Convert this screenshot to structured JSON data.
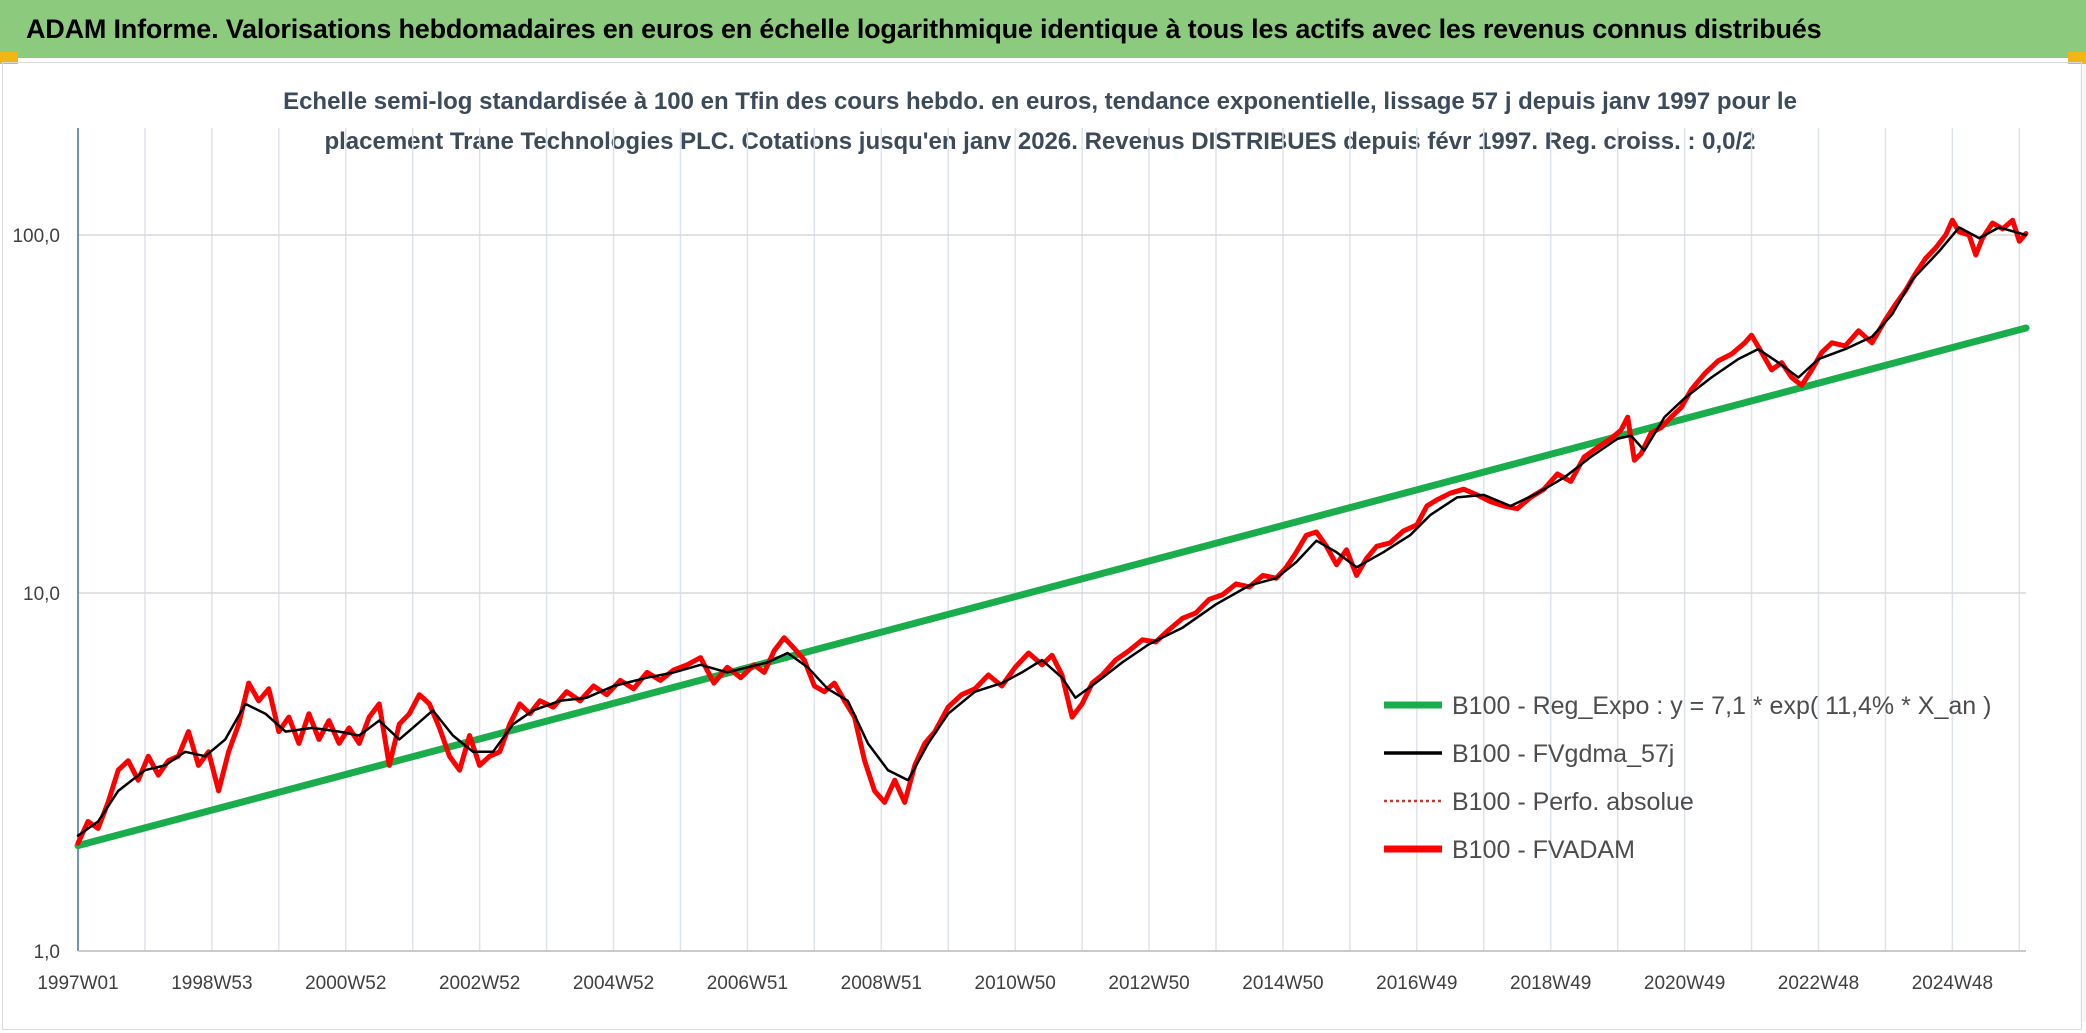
{
  "banner": {
    "title": "ADAM Informe. Valorisations hebdomadaires en euros en échelle logarithmique identique à tous les actifs avec les revenus connus distribués"
  },
  "chart_data": {
    "type": "line",
    "title_line1": "Echelle semi-log standardisée à 100 en Tfin des cours hebdo. en euros, tendance exponentielle, lissage 57 j depuis janv 1997 pour le",
    "title_line2": "placement Trane Technologies PLC. Cotations jusqu'en janv 2026. Revenus DISTRIBUES depuis févr 1997. Reg. croiss. : 0,0/2",
    "y_scale": "log",
    "ylim": [
      1,
      200
    ],
    "xlim": [
      1997.0,
      2026.1
    ],
    "y_ticks": [
      {
        "value": 1,
        "label": "1,0"
      },
      {
        "value": 10,
        "label": "10,0"
      },
      {
        "value": 100,
        "label": "100,0"
      }
    ],
    "x_ticks": [
      {
        "value": 1997.0,
        "label": "1997W01"
      },
      {
        "value": 1999.0,
        "label": "1998W53"
      },
      {
        "value": 2001.0,
        "label": "2000W52"
      },
      {
        "value": 2003.0,
        "label": "2002W52"
      },
      {
        "value": 2005.0,
        "label": "2004W52"
      },
      {
        "value": 2007.0,
        "label": "2006W51"
      },
      {
        "value": 2009.0,
        "label": "2008W51"
      },
      {
        "value": 2011.0,
        "label": "2010W50"
      },
      {
        "value": 2013.0,
        "label": "2012W50"
      },
      {
        "value": 2015.0,
        "label": "2014W50"
      },
      {
        "value": 2017.0,
        "label": "2016W49"
      },
      {
        "value": 2019.0,
        "label": "2018W49"
      },
      {
        "value": 2021.0,
        "label": "2020W49"
      },
      {
        "value": 2023.0,
        "label": "2022W48"
      },
      {
        "value": 2025.0,
        "label": "2024W48"
      }
    ],
    "grid": true,
    "legend_position": "right-middle",
    "series": [
      {
        "name": "B100 - Reg_Expo : y = 7,1 * exp( 11,4% *  X_an )",
        "color": "#1aad4b",
        "style": "solid-thick",
        "points": [
          [
            1997.0,
            1.97
          ],
          [
            2026.1,
            55.0
          ]
        ]
      },
      {
        "name": "B100 - FVgdma_57j",
        "color": "#000000",
        "style": "solid",
        "points": [
          [
            1997.0,
            2.1
          ],
          [
            1997.3,
            2.3
          ],
          [
            1997.6,
            2.8
          ],
          [
            1998.0,
            3.2
          ],
          [
            1998.3,
            3.3
          ],
          [
            1998.6,
            3.6
          ],
          [
            1998.9,
            3.5
          ],
          [
            1999.2,
            3.9
          ],
          [
            1999.5,
            4.9
          ],
          [
            1999.8,
            4.6
          ],
          [
            2000.1,
            4.1
          ],
          [
            2000.5,
            4.2
          ],
          [
            2000.9,
            4.1
          ],
          [
            2001.2,
            4.0
          ],
          [
            2001.5,
            4.4
          ],
          [
            2001.8,
            3.9
          ],
          [
            2002.0,
            4.2
          ],
          [
            2002.3,
            4.7
          ],
          [
            2002.6,
            4.0
          ],
          [
            2002.9,
            3.6
          ],
          [
            2003.2,
            3.6
          ],
          [
            2003.5,
            4.3
          ],
          [
            2003.8,
            4.7
          ],
          [
            2004.2,
            5.0
          ],
          [
            2004.6,
            5.1
          ],
          [
            2005.0,
            5.5
          ],
          [
            2005.5,
            5.8
          ],
          [
            2005.9,
            6.0
          ],
          [
            2006.3,
            6.3
          ],
          [
            2006.7,
            6.0
          ],
          [
            2007.0,
            6.2
          ],
          [
            2007.3,
            6.4
          ],
          [
            2007.6,
            6.8
          ],
          [
            2007.9,
            6.2
          ],
          [
            2008.2,
            5.4
          ],
          [
            2008.5,
            5.0
          ],
          [
            2008.8,
            3.8
          ],
          [
            2009.1,
            3.2
          ],
          [
            2009.4,
            3.0
          ],
          [
            2009.7,
            3.8
          ],
          [
            2010.0,
            4.6
          ],
          [
            2010.4,
            5.3
          ],
          [
            2010.8,
            5.6
          ],
          [
            2011.1,
            6.0
          ],
          [
            2011.4,
            6.5
          ],
          [
            2011.7,
            5.8
          ],
          [
            2011.9,
            5.1
          ],
          [
            2012.2,
            5.6
          ],
          [
            2012.6,
            6.4
          ],
          [
            2013.0,
            7.2
          ],
          [
            2013.5,
            8.0
          ],
          [
            2014.0,
            9.3
          ],
          [
            2014.5,
            10.5
          ],
          [
            2014.9,
            11.0
          ],
          [
            2015.2,
            12.2
          ],
          [
            2015.5,
            14.0
          ],
          [
            2015.8,
            13.0
          ],
          [
            2016.1,
            11.8
          ],
          [
            2016.5,
            13.0
          ],
          [
            2016.9,
            14.5
          ],
          [
            2017.2,
            16.5
          ],
          [
            2017.6,
            18.5
          ],
          [
            2018.0,
            18.8
          ],
          [
            2018.4,
            17.5
          ],
          [
            2018.8,
            19.0
          ],
          [
            2019.2,
            21.0
          ],
          [
            2019.6,
            24.0
          ],
          [
            2020.0,
            27.0
          ],
          [
            2020.2,
            27.5
          ],
          [
            2020.4,
            25.0
          ],
          [
            2020.7,
            31.0
          ],
          [
            2021.0,
            35.0
          ],
          [
            2021.4,
            40.0
          ],
          [
            2021.8,
            45.0
          ],
          [
            2022.1,
            48.0
          ],
          [
            2022.4,
            44.0
          ],
          [
            2022.7,
            40.0
          ],
          [
            2023.0,
            45.0
          ],
          [
            2023.4,
            48.0
          ],
          [
            2023.8,
            52.0
          ],
          [
            2024.1,
            60.0
          ],
          [
            2024.4,
            75.0
          ],
          [
            2024.8,
            90.0
          ],
          [
            2025.1,
            105.0
          ],
          [
            2025.4,
            98.0
          ],
          [
            2025.7,
            105.0
          ],
          [
            2026.1,
            100.0
          ]
        ]
      },
      {
        "name": "B100 - Perfo. absolue",
        "color": "#c0392b",
        "style": "dotted",
        "points": []
      },
      {
        "name": "B100 - FVADAM",
        "color": "#ff0000",
        "style": "solid-thick",
        "points": [
          [
            1997.0,
            2.0
          ],
          [
            1997.15,
            2.3
          ],
          [
            1997.3,
            2.2
          ],
          [
            1997.45,
            2.6
          ],
          [
            1997.6,
            3.2
          ],
          [
            1997.75,
            3.4
          ],
          [
            1997.9,
            3.0
          ],
          [
            1998.05,
            3.5
          ],
          [
            1998.2,
            3.1
          ],
          [
            1998.35,
            3.4
          ],
          [
            1998.5,
            3.5
          ],
          [
            1998.65,
            4.1
          ],
          [
            1998.8,
            3.3
          ],
          [
            1998.95,
            3.6
          ],
          [
            1999.1,
            2.8
          ],
          [
            1999.25,
            3.6
          ],
          [
            1999.4,
            4.3
          ],
          [
            1999.55,
            5.6
          ],
          [
            1999.7,
            5.0
          ],
          [
            1999.85,
            5.4
          ],
          [
            2000.0,
            4.1
          ],
          [
            2000.15,
            4.5
          ],
          [
            2000.3,
            3.8
          ],
          [
            2000.45,
            4.6
          ],
          [
            2000.6,
            3.9
          ],
          [
            2000.75,
            4.4
          ],
          [
            2000.9,
            3.8
          ],
          [
            2001.05,
            4.2
          ],
          [
            2001.2,
            3.8
          ],
          [
            2001.35,
            4.5
          ],
          [
            2001.5,
            4.9
          ],
          [
            2001.65,
            3.3
          ],
          [
            2001.8,
            4.3
          ],
          [
            2001.95,
            4.6
          ],
          [
            2002.1,
            5.2
          ],
          [
            2002.25,
            4.9
          ],
          [
            2002.4,
            4.2
          ],
          [
            2002.55,
            3.5
          ],
          [
            2002.7,
            3.2
          ],
          [
            2002.85,
            4.0
          ],
          [
            2003.0,
            3.3
          ],
          [
            2003.15,
            3.5
          ],
          [
            2003.3,
            3.6
          ],
          [
            2003.45,
            4.3
          ],
          [
            2003.6,
            4.9
          ],
          [
            2003.75,
            4.6
          ],
          [
            2003.9,
            5.0
          ],
          [
            2004.1,
            4.8
          ],
          [
            2004.3,
            5.3
          ],
          [
            2004.5,
            5.0
          ],
          [
            2004.7,
            5.5
          ],
          [
            2004.9,
            5.2
          ],
          [
            2005.1,
            5.7
          ],
          [
            2005.3,
            5.4
          ],
          [
            2005.5,
            6.0
          ],
          [
            2005.7,
            5.7
          ],
          [
            2005.9,
            6.1
          ],
          [
            2006.1,
            6.3
          ],
          [
            2006.3,
            6.6
          ],
          [
            2006.5,
            5.6
          ],
          [
            2006.7,
            6.2
          ],
          [
            2006.9,
            5.8
          ],
          [
            2007.1,
            6.3
          ],
          [
            2007.25,
            6.0
          ],
          [
            2007.4,
            6.9
          ],
          [
            2007.55,
            7.5
          ],
          [
            2007.7,
            7.0
          ],
          [
            2007.85,
            6.5
          ],
          [
            2008.0,
            5.5
          ],
          [
            2008.15,
            5.3
          ],
          [
            2008.3,
            5.6
          ],
          [
            2008.45,
            5.0
          ],
          [
            2008.6,
            4.5
          ],
          [
            2008.75,
            3.4
          ],
          [
            2008.9,
            2.8
          ],
          [
            2009.05,
            2.6
          ],
          [
            2009.2,
            3.0
          ],
          [
            2009.35,
            2.6
          ],
          [
            2009.5,
            3.3
          ],
          [
            2009.65,
            3.8
          ],
          [
            2009.8,
            4.1
          ],
          [
            2010.0,
            4.8
          ],
          [
            2010.2,
            5.2
          ],
          [
            2010.4,
            5.4
          ],
          [
            2010.6,
            5.9
          ],
          [
            2010.8,
            5.5
          ],
          [
            2011.0,
            6.2
          ],
          [
            2011.2,
            6.8
          ],
          [
            2011.4,
            6.3
          ],
          [
            2011.55,
            6.7
          ],
          [
            2011.7,
            5.9
          ],
          [
            2011.85,
            4.5
          ],
          [
            2012.0,
            4.9
          ],
          [
            2012.15,
            5.6
          ],
          [
            2012.3,
            5.9
          ],
          [
            2012.5,
            6.5
          ],
          [
            2012.7,
            6.9
          ],
          [
            2012.9,
            7.4
          ],
          [
            2013.1,
            7.3
          ],
          [
            2013.3,
            7.9
          ],
          [
            2013.5,
            8.5
          ],
          [
            2013.7,
            8.8
          ],
          [
            2013.9,
            9.6
          ],
          [
            2014.1,
            9.9
          ],
          [
            2014.3,
            10.6
          ],
          [
            2014.5,
            10.4
          ],
          [
            2014.7,
            11.2
          ],
          [
            2014.9,
            11.0
          ],
          [
            2015.05,
            11.8
          ],
          [
            2015.2,
            13.0
          ],
          [
            2015.35,
            14.5
          ],
          [
            2015.5,
            14.8
          ],
          [
            2015.65,
            13.5
          ],
          [
            2015.8,
            12.0
          ],
          [
            2015.95,
            13.2
          ],
          [
            2016.1,
            11.2
          ],
          [
            2016.25,
            12.5
          ],
          [
            2016.4,
            13.5
          ],
          [
            2016.6,
            13.8
          ],
          [
            2016.8,
            14.9
          ],
          [
            2017.0,
            15.5
          ],
          [
            2017.15,
            17.5
          ],
          [
            2017.3,
            18.2
          ],
          [
            2017.5,
            19.0
          ],
          [
            2017.7,
            19.5
          ],
          [
            2017.9,
            18.8
          ],
          [
            2018.1,
            18.0
          ],
          [
            2018.3,
            17.5
          ],
          [
            2018.5,
            17.2
          ],
          [
            2018.7,
            18.5
          ],
          [
            2018.9,
            19.5
          ],
          [
            2019.1,
            21.5
          ],
          [
            2019.3,
            20.5
          ],
          [
            2019.5,
            24.0
          ],
          [
            2019.7,
            25.5
          ],
          [
            2019.9,
            27.0
          ],
          [
            2020.05,
            28.5
          ],
          [
            2020.15,
            31.0
          ],
          [
            2020.25,
            23.5
          ],
          [
            2020.35,
            24.5
          ],
          [
            2020.5,
            28.0
          ],
          [
            2020.65,
            29.0
          ],
          [
            2020.8,
            31.0
          ],
          [
            2020.95,
            33.0
          ],
          [
            2021.1,
            37.0
          ],
          [
            2021.3,
            41.0
          ],
          [
            2021.5,
            44.5
          ],
          [
            2021.7,
            46.5
          ],
          [
            2021.9,
            50.0
          ],
          [
            2022.0,
            52.5
          ],
          [
            2022.15,
            47.0
          ],
          [
            2022.3,
            42.0
          ],
          [
            2022.45,
            44.0
          ],
          [
            2022.6,
            40.0
          ],
          [
            2022.75,
            38.0
          ],
          [
            2022.9,
            42.0
          ],
          [
            2023.05,
            47.0
          ],
          [
            2023.2,
            50.0
          ],
          [
            2023.4,
            49.0
          ],
          [
            2023.6,
            54.0
          ],
          [
            2023.8,
            50.0
          ],
          [
            2024.0,
            58.0
          ],
          [
            2024.15,
            64.0
          ],
          [
            2024.3,
            70.0
          ],
          [
            2024.45,
            78.0
          ],
          [
            2024.6,
            86.0
          ],
          [
            2024.75,
            92.0
          ],
          [
            2024.9,
            100.0
          ],
          [
            2025.0,
            110.0
          ],
          [
            2025.1,
            102.0
          ],
          [
            2025.25,
            100.0
          ],
          [
            2025.35,
            88.0
          ],
          [
            2025.45,
            98.0
          ],
          [
            2025.6,
            108.0
          ],
          [
            2025.75,
            104.0
          ],
          [
            2025.9,
            110.0
          ],
          [
            2026.0,
            96.0
          ],
          [
            2026.1,
            101.0
          ]
        ]
      }
    ]
  }
}
